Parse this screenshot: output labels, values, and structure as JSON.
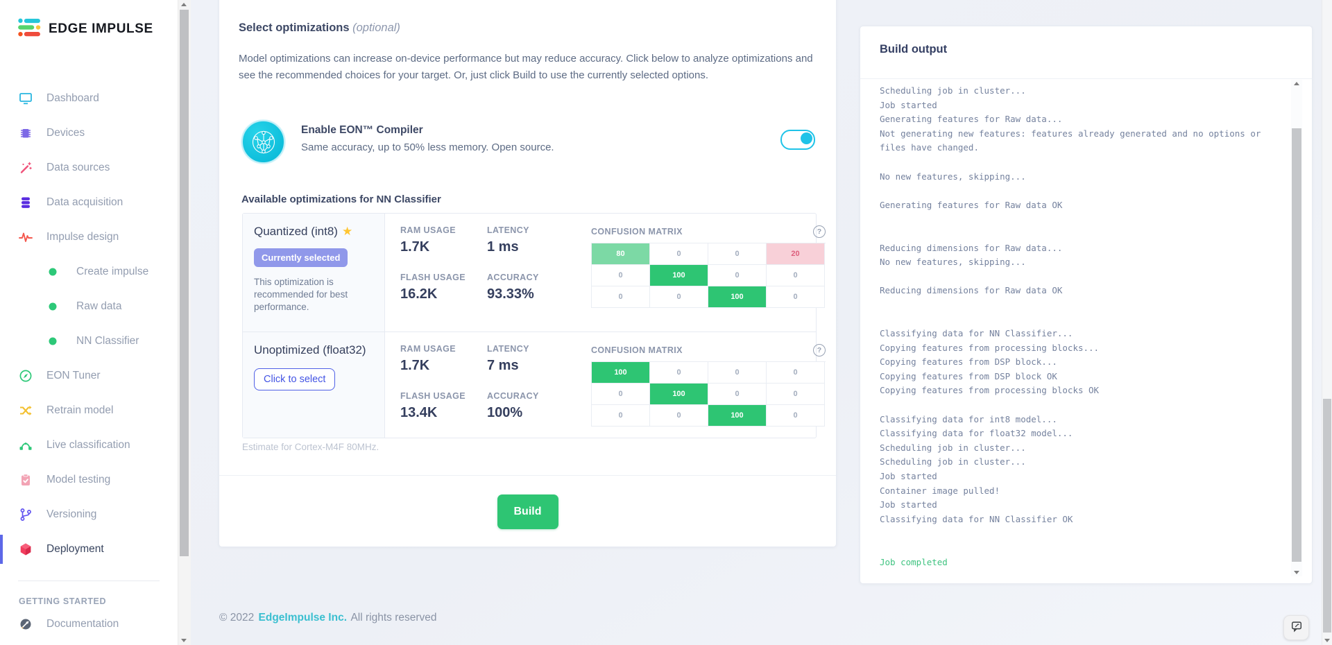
{
  "brand": {
    "name": "EDGE IMPULSE"
  },
  "sidebar": {
    "items": [
      {
        "label": "Dashboard",
        "icon": "monitor"
      },
      {
        "label": "Devices",
        "icon": "chip"
      },
      {
        "label": "Data sources",
        "icon": "wand"
      },
      {
        "label": "Data acquisition",
        "icon": "database"
      },
      {
        "label": "Impulse design",
        "icon": "waveform"
      },
      {
        "label": "Create impulse",
        "icon": "dot",
        "sub": true
      },
      {
        "label": "Raw data",
        "icon": "dot",
        "sub": true
      },
      {
        "label": "NN Classifier",
        "icon": "dot",
        "sub": true
      },
      {
        "label": "EON Tuner",
        "icon": "compass"
      },
      {
        "label": "Retrain model",
        "icon": "shuffle"
      },
      {
        "label": "Live classification",
        "icon": "bezier"
      },
      {
        "label": "Model testing",
        "icon": "clipboard"
      },
      {
        "label": "Versioning",
        "icon": "branch"
      },
      {
        "label": "Deployment",
        "icon": "cube",
        "active": true
      }
    ],
    "section_label": "GETTING STARTED",
    "section_items": [
      {
        "label": "Documentation",
        "icon": "rocket"
      }
    ]
  },
  "main": {
    "title": "Select optimizations",
    "title_suffix": "(optional)",
    "description": "Model optimizations can increase on-device performance but may reduce accuracy. Click below to analyze optimizations and see the recommended choices for your target. Or, just click Build to use the currently selected options.",
    "eon": {
      "title": "Enable EON™ Compiler",
      "subtitle": "Same accuracy, up to 50% less memory. Open source.",
      "enabled": true
    },
    "table_title": "Available optimizations for NN Classifier",
    "metric_labels": {
      "ram": "RAM USAGE",
      "latency": "LATENCY",
      "flash": "FLASH USAGE",
      "accuracy": "ACCURACY"
    },
    "confusion_label": "CONFUSION MATRIX",
    "optimizations": [
      {
        "name": "Quantized (int8)",
        "starred": true,
        "badge": "Currently selected",
        "note": "This optimization is recommended for best performance.",
        "ram": "1.7K",
        "latency": "1 ms",
        "flash": "16.2K",
        "accuracy": "93.33%",
        "confusion": [
          [
            80,
            0,
            0,
            20
          ],
          [
            0,
            100,
            0,
            0
          ],
          [
            0,
            0,
            100,
            0
          ]
        ]
      },
      {
        "name": "Unoptimized (float32)",
        "starred": false,
        "button": "Click to select",
        "ram": "1.7K",
        "latency": "7 ms",
        "flash": "13.4K",
        "accuracy": "100%",
        "confusion": [
          [
            100,
            0,
            0,
            0
          ],
          [
            0,
            100,
            0,
            0
          ],
          [
            0,
            0,
            100,
            0
          ]
        ]
      }
    ],
    "estimate_note": "Estimate for Cortex-M4F 80MHz.",
    "build_button": "Build"
  },
  "build_output": {
    "title": "Build output",
    "lines": [
      {
        "t": "Scheduling job in cluster..."
      },
      {
        "t": "Job started"
      },
      {
        "t": "Generating features for Raw data..."
      },
      {
        "t": "Not generating new features: features already generated and no options or"
      },
      {
        "t": "files have changed."
      },
      {
        "t": ""
      },
      {
        "t": "No new features, skipping..."
      },
      {
        "t": ""
      },
      {
        "t": "Generating features for Raw data OK"
      },
      {
        "t": ""
      },
      {
        "t": ""
      },
      {
        "t": "Reducing dimensions for Raw data..."
      },
      {
        "t": "No new features, skipping..."
      },
      {
        "t": ""
      },
      {
        "t": "Reducing dimensions for Raw data OK"
      },
      {
        "t": ""
      },
      {
        "t": ""
      },
      {
        "t": "Classifying data for NN Classifier..."
      },
      {
        "t": "Copying features from processing blocks..."
      },
      {
        "t": "Copying features from DSP block..."
      },
      {
        "t": "Copying features from DSP block OK"
      },
      {
        "t": "Copying features from processing blocks OK"
      },
      {
        "t": ""
      },
      {
        "t": "Classifying data for int8 model..."
      },
      {
        "t": "Classifying data for float32 model..."
      },
      {
        "t": "Scheduling job in cluster..."
      },
      {
        "t": "Scheduling job in cluster..."
      },
      {
        "t": "Job started"
      },
      {
        "t": "Container image pulled!"
      },
      {
        "t": "Job started"
      },
      {
        "t": "Classifying data for NN Classifier OK"
      },
      {
        "t": ""
      },
      {
        "t": ""
      },
      {
        "t": "Job completed",
        "ok": true
      }
    ]
  },
  "footer": {
    "copyright": "© 2022",
    "company": "EdgeImpulse Inc.",
    "rights": "All rights reserved"
  },
  "colors": {
    "accent_green": "#2ec573",
    "accent_cyan": "#1fc3e8",
    "accent_indigo": "#5d68e8",
    "matrix_good": "#2ec573",
    "matrix_good_light": "#7cd9a5",
    "matrix_bad_bg": "#f8d0d8",
    "log_success": "#3fc380"
  }
}
